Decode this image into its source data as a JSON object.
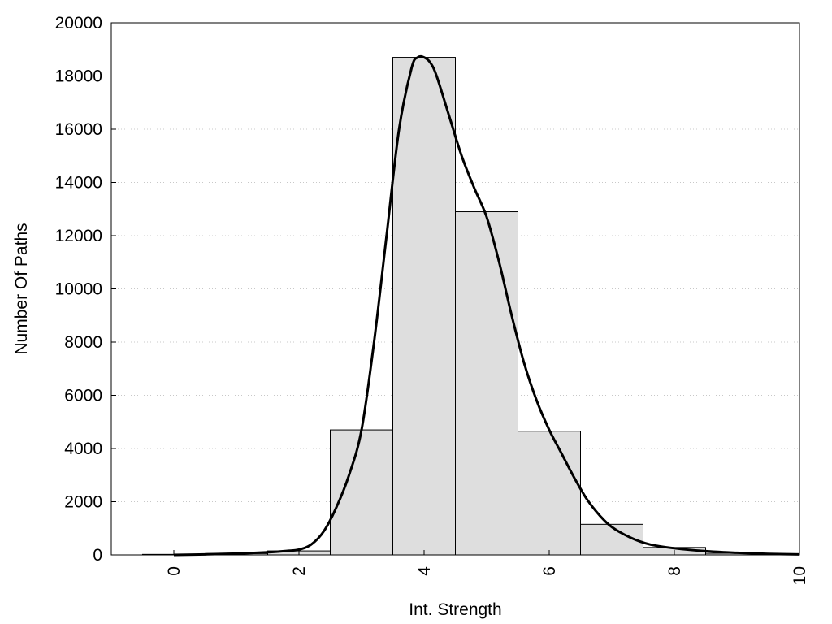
{
  "chart_data": {
    "type": "bar",
    "title": "",
    "xlabel": "Int. Strength",
    "ylabel": "Number Of Paths",
    "xlim": [
      -1,
      10
    ],
    "ylim": [
      0,
      20000
    ],
    "xticks": [
      0,
      2,
      4,
      6,
      8,
      10
    ],
    "yticks": [
      0,
      2000,
      4000,
      6000,
      8000,
      10000,
      12000,
      14000,
      16000,
      18000,
      20000
    ],
    "grid": "horizontal dotted",
    "colors": {
      "bar_fill": "#dedede",
      "bar_edge": "#000000",
      "curve": "#000000"
    },
    "bars": {
      "bin_width": 1,
      "centers": [
        0,
        1,
        2,
        3,
        4,
        5,
        6,
        7,
        8,
        9,
        10
      ],
      "values": [
        20,
        50,
        150,
        4700,
        18700,
        12900,
        4650,
        1150,
        280,
        60,
        20
      ]
    },
    "curve": {
      "x": [
        0,
        0.5,
        1,
        1.5,
        1.8,
        2,
        2.2,
        2.4,
        2.6,
        2.8,
        3,
        3.2,
        3.4,
        3.6,
        3.8,
        3.9,
        4,
        4.1,
        4.2,
        4.4,
        4.6,
        4.8,
        5,
        5.2,
        5.4,
        5.6,
        5.8,
        6,
        6.2,
        6.4,
        6.6,
        6.8,
        7,
        7.3,
        7.6,
        8,
        8.5,
        9,
        9.5,
        10
      ],
      "y": [
        0,
        20,
        50,
        100,
        150,
        200,
        400,
        900,
        1800,
        3000,
        4700,
        8000,
        12000,
        16000,
        18300,
        18700,
        18700,
        18500,
        18000,
        16500,
        15000,
        13800,
        12700,
        11000,
        9000,
        7200,
        5800,
        4700,
        3800,
        2900,
        2100,
        1500,
        1050,
        650,
        400,
        250,
        140,
        80,
        40,
        20
      ]
    }
  }
}
